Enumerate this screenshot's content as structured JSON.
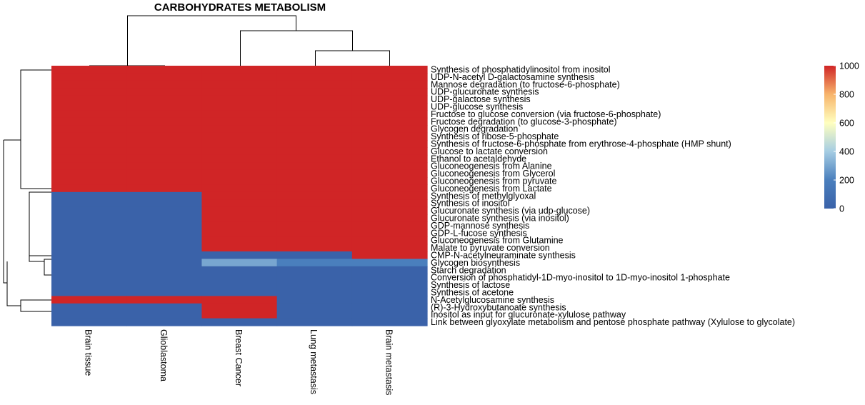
{
  "chart_data": {
    "type": "heatmap",
    "title": "CARBOHYDRATES METABOLISM",
    "columns": [
      "Brain tissue",
      "Glioblastoma",
      "Breast Cancer",
      "Lung metastasis",
      "Brain metastasis"
    ],
    "rows": [
      "Synthesis of phosphatidylinositol from inositol",
      "UDP-N-acetyl D-galactosamine synthesis",
      "Mannose degradation (to fructose-6-phosphate)",
      "UDP-glucuronate synthesis",
      "UDP-galactose synthesis",
      "UDP-glucose synthesis",
      "Fructose to glucose conversion (via fructose-6-phosphate)",
      "Fructose degradation (to glucose-3-phosphate)",
      "Glycogen degradation",
      "Synthesis of ribose-5-phosphate",
      "Synthesis of fructose-6-phosphate from erythrose-4-phosphate (HMP shunt)",
      "Glucose to lactate conversion",
      "Ethanol to acetaldehyde",
      "Gluconeogenesis from Alanine",
      "Gluconeogenesis from Glycerol",
      "Gluconeogenesis from pyruvate",
      "Gluconeogenesis from Lactate",
      "Synthesis of methylglyoxal",
      "Synthesis of inositol",
      "Glucuronate synthesis (via udp-glucose)",
      "Glucuronate synthesis (via inositol)",
      "GDP-mannose synthesis",
      "GDP-L-fucose synthesis",
      "Gluconeogenesis from Glutamine",
      "Malate to pyruvate conversion",
      "CMP-N-acetylneuraminate synthesis",
      "Glycogen biosynthesis",
      "Starch degradation",
      "Conversion of phosphatidyl-1D-myo-inositol to 1D-myo-inositol 1-phosphate",
      "Synthesis of lactose",
      "Synthesis of acetone",
      "N-Acetylglucosamine synthesis",
      "(R)-3-Hydroxybutanoate synthesis",
      "Inositol as input for glucuronate-xylulose pathway",
      "Link between glyoxylate metabolism and pentose phosphate pathway (Xylulose to glycolate)"
    ],
    "values": [
      [
        1000,
        1000,
        1000,
        1000,
        1000
      ],
      [
        1000,
        1000,
        1000,
        1000,
        1000
      ],
      [
        1000,
        1000,
        1000,
        1000,
        1000
      ],
      [
        1000,
        1000,
        1000,
        1000,
        1000
      ],
      [
        1000,
        1000,
        1000,
        1000,
        1000
      ],
      [
        1000,
        1000,
        1000,
        1000,
        1000
      ],
      [
        1000,
        1000,
        1000,
        1000,
        1000
      ],
      [
        1000,
        1000,
        1000,
        1000,
        1000
      ],
      [
        1000,
        1000,
        1000,
        1000,
        1000
      ],
      [
        1000,
        1000,
        1000,
        1000,
        1000
      ],
      [
        1000,
        1000,
        1000,
        1000,
        1000
      ],
      [
        1000,
        1000,
        1000,
        1000,
        1000
      ],
      [
        1000,
        1000,
        1000,
        1000,
        1000
      ],
      [
        1000,
        1000,
        1000,
        1000,
        1000
      ],
      [
        1000,
        1000,
        1000,
        1000,
        1000
      ],
      [
        1000,
        1000,
        1000,
        1000,
        1000
      ],
      [
        1000,
        1000,
        1000,
        1000,
        1000
      ],
      [
        0,
        0,
        1000,
        1000,
        1000
      ],
      [
        0,
        0,
        1000,
        1000,
        1000
      ],
      [
        0,
        0,
        1000,
        1000,
        1000
      ],
      [
        0,
        0,
        1000,
        1000,
        1000
      ],
      [
        0,
        0,
        1000,
        1000,
        1000
      ],
      [
        0,
        0,
        1000,
        1000,
        1000
      ],
      [
        0,
        0,
        1000,
        1000,
        1000
      ],
      [
        0,
        0,
        1000,
        1000,
        1000
      ],
      [
        0,
        0,
        0,
        0,
        1000
      ],
      [
        0,
        0,
        300,
        200,
        200
      ],
      [
        0,
        0,
        0,
        0,
        0
      ],
      [
        0,
        0,
        0,
        0,
        0
      ],
      [
        0,
        0,
        0,
        0,
        0
      ],
      [
        0,
        0,
        0,
        0,
        0
      ],
      [
        1000,
        1000,
        1000,
        0,
        0
      ],
      [
        0,
        0,
        1000,
        0,
        0
      ],
      [
        0,
        0,
        1000,
        0,
        0
      ],
      [
        0,
        0,
        0,
        0,
        0
      ]
    ],
    "legend": {
      "min": 0,
      "max": 1000,
      "ticks": [
        0,
        200,
        400,
        600,
        800,
        1000
      ],
      "colors": [
        "#3a62a9",
        "#4a7fbd",
        "#a5cde3",
        "#ffffbf",
        "#f7b46b",
        "#d02526"
      ]
    }
  }
}
